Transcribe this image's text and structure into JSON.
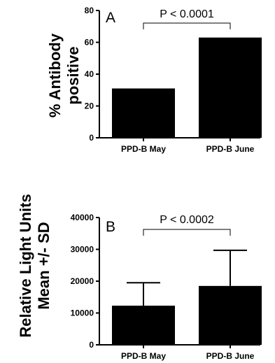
{
  "chart_data": [
    {
      "type": "bar",
      "panel_label": "A",
      "categories": [
        "PPD-B May",
        "PPD-B June"
      ],
      "values": [
        31,
        63
      ],
      "ylabel": [
        "% Antibody",
        "positive"
      ],
      "ylim": [
        0,
        80
      ],
      "yticks": [
        0,
        20,
        40,
        60,
        80
      ],
      "significance": {
        "label": "P < 0.0001",
        "between": [
          0,
          1
        ]
      },
      "bar_color": "#000000"
    },
    {
      "type": "bar",
      "panel_label": "B",
      "categories": [
        "PPD-B May",
        "PPD-B June"
      ],
      "values": [
        12300,
        18500
      ],
      "errors": [
        7200,
        11200
      ],
      "ylabel": [
        "Relative Light Units",
        "Mean +/- SD"
      ],
      "ylim": [
        0,
        40000
      ],
      "yticks": [
        0,
        10000,
        20000,
        30000,
        40000
      ],
      "significance": {
        "label": "P < 0.0002",
        "between": [
          0,
          1
        ]
      },
      "bar_color": "#000000"
    }
  ]
}
